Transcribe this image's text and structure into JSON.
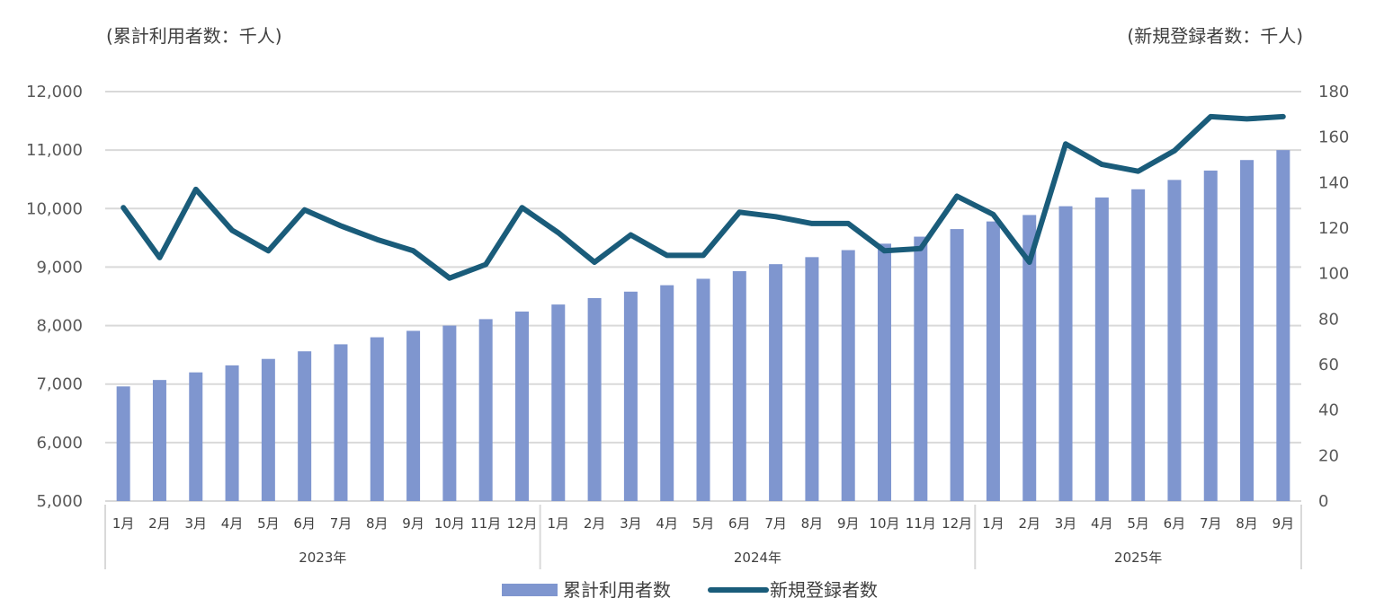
{
  "chart_data": {
    "type": "bar",
    "title": "",
    "left_axis_label": "(累計利用者数：千人)",
    "right_axis_label": "(新規登録者数：千人)",
    "left_axis": {
      "min": 5000,
      "max": 12000,
      "step": 1000,
      "tick_labels": [
        "5,000",
        "6,000",
        "7,000",
        "8,000",
        "9,000",
        "10,000",
        "11,000",
        "12,000"
      ]
    },
    "right_axis": {
      "min": 0,
      "max": 180,
      "step": 20,
      "tick_labels": [
        "0",
        "20",
        "40",
        "60",
        "80",
        "100",
        "120",
        "140",
        "160",
        "180"
      ]
    },
    "categories": [
      "1月",
      "2月",
      "3月",
      "4月",
      "5月",
      "6月",
      "7月",
      "8月",
      "9月",
      "10月",
      "11月",
      "12月",
      "1月",
      "2月",
      "3月",
      "4月",
      "5月",
      "6月",
      "7月",
      "8月",
      "9月",
      "10月",
      "11月",
      "12月",
      "1月",
      "2月",
      "3月",
      "4月",
      "5月",
      "6月",
      "7月",
      "8月",
      "9月"
    ],
    "groups": [
      {
        "label": "2023年",
        "count": 12
      },
      {
        "label": "2024年",
        "count": 12
      },
      {
        "label": "2025年",
        "count": 9
      }
    ],
    "series": [
      {
        "name": "累計利用者数",
        "type": "bar",
        "axis": "left",
        "color": "#7F96CF",
        "values": [
          6960,
          7070,
          7200,
          7320,
          7430,
          7560,
          7680,
          7800,
          7910,
          8000,
          8110,
          8240,
          8360,
          8470,
          8580,
          8690,
          8800,
          8930,
          9050,
          9170,
          9290,
          9400,
          9520,
          9650,
          9780,
          9890,
          10040,
          10190,
          10330,
          10490,
          10650,
          10830,
          11000
        ]
      },
      {
        "name": "新規登録者数",
        "type": "line",
        "axis": "right",
        "color": "#1A5C7A",
        "values": [
          129,
          107,
          137,
          119,
          110,
          128,
          121,
          115,
          110,
          98,
          104,
          129,
          118,
          105,
          117,
          108,
          108,
          127,
          125,
          122,
          122,
          110,
          111,
          134,
          126,
          105,
          157,
          148,
          145,
          154,
          169,
          168,
          169
        ]
      }
    ]
  }
}
